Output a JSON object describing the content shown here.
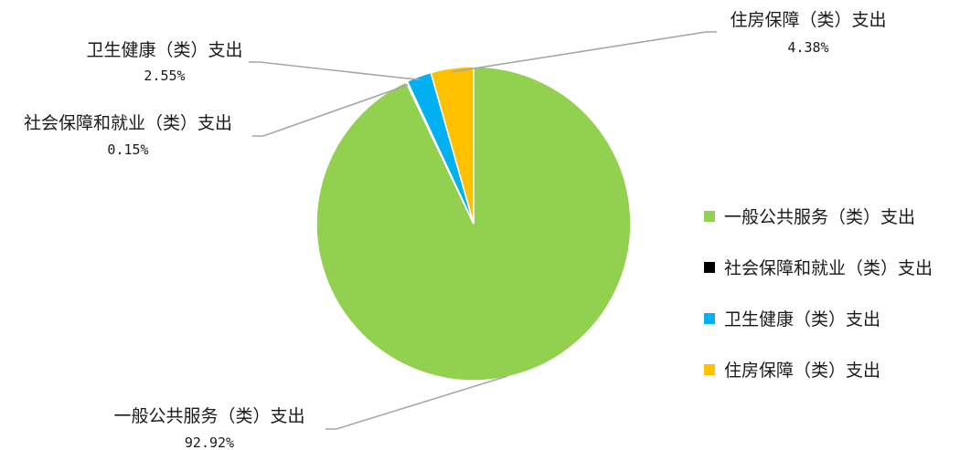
{
  "chart_data": {
    "type": "pie",
    "title": "",
    "start_angle_deg": 0,
    "direction": "clockwise",
    "legend_position": "right",
    "slices": [
      {
        "label": "一般公共服务（类）支出",
        "value": 92.92,
        "value_label": "92.92%",
        "color": "#92d050"
      },
      {
        "label": "社会保障和就业（类）支出",
        "value": 0.15,
        "value_label": "0.15%",
        "color": "#000000"
      },
      {
        "label": "卫生健康（类）支出",
        "value": 2.55,
        "value_label": "2.55%",
        "color": "#00b0f0"
      },
      {
        "label": "住房保障（类）支出",
        "value": 4.38,
        "value_label": "4.38%",
        "color": "#ffc000"
      }
    ]
  }
}
